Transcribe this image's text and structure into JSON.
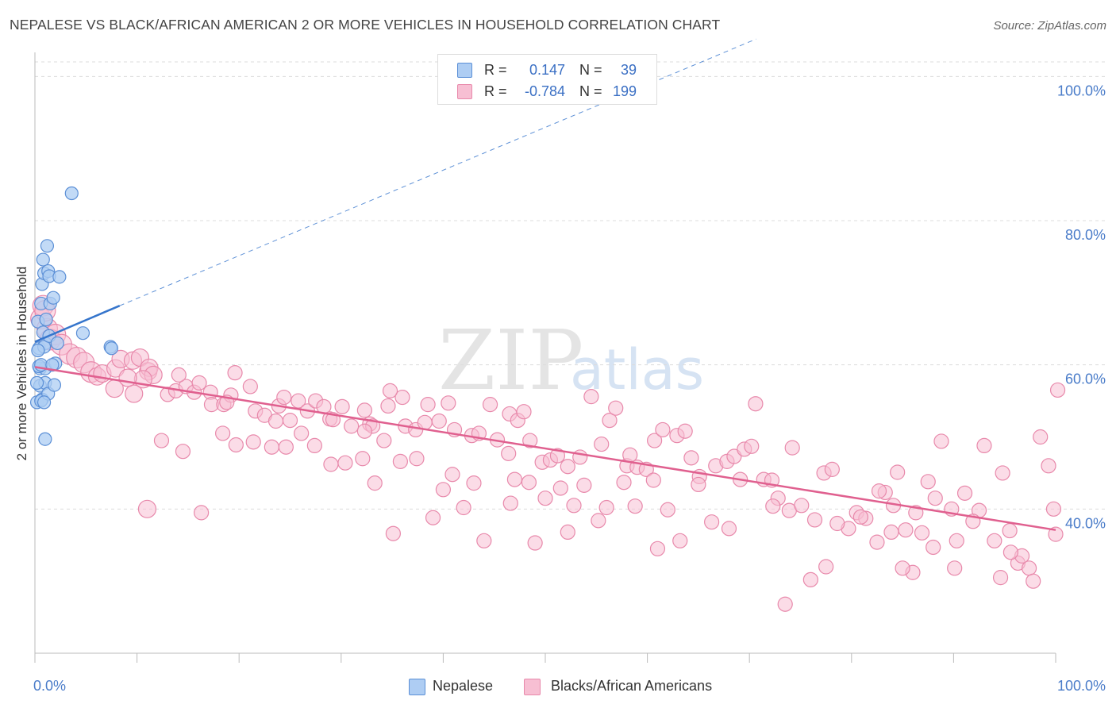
{
  "title": "NEPALESE VS BLACK/AFRICAN AMERICAN 2 OR MORE VEHICLES IN HOUSEHOLD CORRELATION CHART",
  "source": "Source: ZipAtlas.com",
  "watermark": {
    "zip": "ZIP",
    "atlas": "atlas"
  },
  "colors": {
    "nepalese_fill": "#aecdf3",
    "nepalese_stroke": "#5b8fd6",
    "nepalese_line": "#3575cc",
    "black_fill": "#f7bfd3",
    "black_stroke": "#e889ab",
    "black_line": "#e0608f",
    "grid": "#dcdcdc",
    "tick_text": "#4a7cc9"
  },
  "legend": {
    "rows": [
      {
        "r_label": "R =",
        "r_value": "0.147",
        "n_label": "N =",
        "n_value": "39"
      },
      {
        "r_label": "R =",
        "r_value": "-0.784",
        "n_label": "N =",
        "n_value": "199"
      }
    ]
  },
  "bottom_legend": {
    "series1": "Nepalese",
    "series2": "Blacks/African Americans"
  },
  "chart_data": {
    "type": "scatter",
    "title": "NEPALESE VS BLACK/AFRICAN AMERICAN 2 OR MORE VEHICLES IN HOUSEHOLD CORRELATION CHART",
    "xlabel": "",
    "ylabel": "2 or more Vehicles in Household",
    "x_tick_labels": [
      "0.0%",
      "100.0%"
    ],
    "y_tick_labels": [
      "40.0%",
      "60.0%",
      "80.0%",
      "100.0%"
    ],
    "y_ticks": [
      40,
      60,
      80,
      100
    ],
    "xlim": [
      0,
      100
    ],
    "ylim": [
      20,
      104
    ],
    "grid": true,
    "legend_position": "top-center",
    "series": [
      {
        "name": "Nepalese",
        "R": 0.147,
        "N": 39,
        "trend": {
          "x0": 0,
          "y0": 63.2,
          "x1": 8.3,
          "y1": 68.2,
          "dashed_to_x": 100,
          "dashed_to_y": 122.6
        },
        "points": [
          [
            0.2,
            54.8
          ],
          [
            0.5,
            59.5
          ],
          [
            0.4,
            62.3
          ],
          [
            0.3,
            66.0
          ],
          [
            0.6,
            68.5
          ],
          [
            0.8,
            74.6
          ],
          [
            0.7,
            71.2
          ],
          [
            0.9,
            72.7
          ],
          [
            1.2,
            76.5
          ],
          [
            1.3,
            73.0
          ],
          [
            1.4,
            72.3
          ],
          [
            1.1,
            66.3
          ],
          [
            1.0,
            63.0
          ],
          [
            1.5,
            68.5
          ],
          [
            1.8,
            69.3
          ],
          [
            2.4,
            72.2
          ],
          [
            3.6,
            83.8
          ],
          [
            4.7,
            64.4
          ],
          [
            7.4,
            62.5
          ],
          [
            7.5,
            62.3
          ],
          [
            0.9,
            62.5
          ],
          [
            1.0,
            59.5
          ],
          [
            0.5,
            57.1
          ],
          [
            0.7,
            55.2
          ],
          [
            0.6,
            55.0
          ],
          [
            1.0,
            57.5
          ],
          [
            1.3,
            56.0
          ],
          [
            1.9,
            57.2
          ],
          [
            2.0,
            60.2
          ],
          [
            1.0,
            49.7
          ],
          [
            0.4,
            59.8
          ],
          [
            0.3,
            62.0
          ],
          [
            0.8,
            64.5
          ],
          [
            1.4,
            64.0
          ],
          [
            0.6,
            60.0
          ],
          [
            1.7,
            60.0
          ],
          [
            0.2,
            57.5
          ],
          [
            2.2,
            63.0
          ],
          [
            0.9,
            54.8
          ]
        ]
      },
      {
        "name": "Blacks/African Americans",
        "R": -0.784,
        "N": 199,
        "trend": {
          "x0": 0,
          "y0": 59.7,
          "x1": 100,
          "y1": 37.1
        },
        "points": [
          [
            0.6,
            66.4
          ],
          [
            0.8,
            68.2
          ],
          [
            1.2,
            65.0
          ],
          [
            1.5,
            63.5
          ],
          [
            2.0,
            64.2
          ],
          [
            1.0,
            67.5
          ],
          [
            2.6,
            62.8
          ],
          [
            3.4,
            61.5
          ],
          [
            4.1,
            61.0
          ],
          [
            4.8,
            60.3
          ],
          [
            5.5,
            59.0
          ],
          [
            6.1,
            58.4
          ],
          [
            6.6,
            58.8
          ],
          [
            7.9,
            59.5
          ],
          [
            8.4,
            60.8
          ],
          [
            9.6,
            60.6
          ],
          [
            10.3,
            61.0
          ],
          [
            7.8,
            56.7
          ],
          [
            11.1,
            59.1
          ],
          [
            11.2,
            59.6
          ],
          [
            11.6,
            58.6
          ],
          [
            9.7,
            56.0
          ],
          [
            10.6,
            58.0
          ],
          [
            13.0,
            55.9
          ],
          [
            13.8,
            56.4
          ],
          [
            14.8,
            57.0
          ],
          [
            15.6,
            56.2
          ],
          [
            14.1,
            58.6
          ],
          [
            16.1,
            57.5
          ],
          [
            17.2,
            56.2
          ],
          [
            17.3,
            54.5
          ],
          [
            18.5,
            54.5
          ],
          [
            19.2,
            55.8
          ],
          [
            19.6,
            58.9
          ],
          [
            18.8,
            54.8
          ],
          [
            21.1,
            57.0
          ],
          [
            21.6,
            53.6
          ],
          [
            22.5,
            53.0
          ],
          [
            23.6,
            52.2
          ],
          [
            23.9,
            54.3
          ],
          [
            24.4,
            55.5
          ],
          [
            25.0,
            52.3
          ],
          [
            25.8,
            55.0
          ],
          [
            26.7,
            53.6
          ],
          [
            27.5,
            55.0
          ],
          [
            28.3,
            54.2
          ],
          [
            28.9,
            52.5
          ],
          [
            29.2,
            52.4
          ],
          [
            30.1,
            54.2
          ],
          [
            31.0,
            51.5
          ],
          [
            32.3,
            53.7
          ],
          [
            32.8,
            51.8
          ],
          [
            33.1,
            51.5
          ],
          [
            34.2,
            49.5
          ],
          [
            34.6,
            54.3
          ],
          [
            36.0,
            55.5
          ],
          [
            36.3,
            51.5
          ],
          [
            37.3,
            51.0
          ],
          [
            38.2,
            52.0
          ],
          [
            38.5,
            54.5
          ],
          [
            39.6,
            52.2
          ],
          [
            40.5,
            54.7
          ],
          [
            41.1,
            51.0
          ],
          [
            42.8,
            50.2
          ],
          [
            43.5,
            50.5
          ],
          [
            44.6,
            54.5
          ],
          [
            45.3,
            49.6
          ],
          [
            46.4,
            47.7
          ],
          [
            46.5,
            53.2
          ],
          [
            47.3,
            52.3
          ],
          [
            47.9,
            53.5
          ],
          [
            48.5,
            49.5
          ],
          [
            49.7,
            46.5
          ],
          [
            50.5,
            46.8
          ],
          [
            51.2,
            47.4
          ],
          [
            52.2,
            45.9
          ],
          [
            53.4,
            47.2
          ],
          [
            54.5,
            55.6
          ],
          [
            55.5,
            49.0
          ],
          [
            56.3,
            52.3
          ],
          [
            56.9,
            54.0
          ],
          [
            58.0,
            46.0
          ],
          [
            58.3,
            47.5
          ],
          [
            59.0,
            45.8
          ],
          [
            59.9,
            45.5
          ],
          [
            60.6,
            44.0
          ],
          [
            60.7,
            49.5
          ],
          [
            61.5,
            51.0
          ],
          [
            62.9,
            50.2
          ],
          [
            63.7,
            50.8
          ],
          [
            64.3,
            47.1
          ],
          [
            65.1,
            44.5
          ],
          [
            66.7,
            46.0
          ],
          [
            67.8,
            46.6
          ],
          [
            68.5,
            47.3
          ],
          [
            69.5,
            48.3
          ],
          [
            70.6,
            54.6
          ],
          [
            71.4,
            44.1
          ],
          [
            72.2,
            44.0
          ],
          [
            72.8,
            41.5
          ],
          [
            73.9,
            39.8
          ],
          [
            74.2,
            48.5
          ],
          [
            75.1,
            40.5
          ],
          [
            76.4,
            38.5
          ],
          [
            77.3,
            45.0
          ],
          [
            78.1,
            45.5
          ],
          [
            79.7,
            37.3
          ],
          [
            80.5,
            39.5
          ],
          [
            81.4,
            38.7
          ],
          [
            82.5,
            35.4
          ],
          [
            83.3,
            42.3
          ],
          [
            84.1,
            40.5
          ],
          [
            84.5,
            45.1
          ],
          [
            85.3,
            37.1
          ],
          [
            86.3,
            39.5
          ],
          [
            86.9,
            36.7
          ],
          [
            87.5,
            43.8
          ],
          [
            88.2,
            41.5
          ],
          [
            88.8,
            49.4
          ],
          [
            89.8,
            40.0
          ],
          [
            90.3,
            35.6
          ],
          [
            91.1,
            42.2
          ],
          [
            92.5,
            39.8
          ],
          [
            93.0,
            48.8
          ],
          [
            94.0,
            35.6
          ],
          [
            94.8,
            45.0
          ],
          [
            95.5,
            37.0
          ],
          [
            96.3,
            32.5
          ],
          [
            97.4,
            31.8
          ],
          [
            98.5,
            50.0
          ],
          [
            99.3,
            46.0
          ],
          [
            100.0,
            36.5
          ],
          [
            100.2,
            56.5
          ],
          [
            99.8,
            40.0
          ],
          [
            97.8,
            30.0
          ],
          [
            96.7,
            33.5
          ],
          [
            95.6,
            34.0
          ],
          [
            94.6,
            30.5
          ],
          [
            91.9,
            38.3
          ],
          [
            90.1,
            31.8
          ],
          [
            88.0,
            34.7
          ],
          [
            86.0,
            31.2
          ],
          [
            85.0,
            31.8
          ],
          [
            83.9,
            36.8
          ],
          [
            82.7,
            42.5
          ],
          [
            80.9,
            38.9
          ],
          [
            78.6,
            38.0
          ],
          [
            77.5,
            32.0
          ],
          [
            76.0,
            30.2
          ],
          [
            73.5,
            26.8
          ],
          [
            72.3,
            40.4
          ],
          [
            70.2,
            48.7
          ],
          [
            69.1,
            44.1
          ],
          [
            68.0,
            37.3
          ],
          [
            66.3,
            38.2
          ],
          [
            65.0,
            43.4
          ],
          [
            63.2,
            35.6
          ],
          [
            62.0,
            39.9
          ],
          [
            61.0,
            34.5
          ],
          [
            58.8,
            40.4
          ],
          [
            57.7,
            43.7
          ],
          [
            56.0,
            40.2
          ],
          [
            55.2,
            38.4
          ],
          [
            53.8,
            43.3
          ],
          [
            52.8,
            40.5
          ],
          [
            51.5,
            42.9
          ],
          [
            50.0,
            41.5
          ],
          [
            49.0,
            35.3
          ],
          [
            48.4,
            43.7
          ],
          [
            47.0,
            44.1
          ],
          [
            46.6,
            40.8
          ],
          [
            44.0,
            35.6
          ],
          [
            43.0,
            43.6
          ],
          [
            42.0,
            40.2
          ],
          [
            40.9,
            44.8
          ],
          [
            40.0,
            42.7
          ],
          [
            39.0,
            38.8
          ],
          [
            37.4,
            47.0
          ],
          [
            35.8,
            46.6
          ],
          [
            35.1,
            36.6
          ],
          [
            33.3,
            43.6
          ],
          [
            32.1,
            47.0
          ],
          [
            30.4,
            46.4
          ],
          [
            29.0,
            46.2
          ],
          [
            27.4,
            48.8
          ],
          [
            26.1,
            50.5
          ],
          [
            24.6,
            48.6
          ],
          [
            23.2,
            48.6
          ],
          [
            21.4,
            49.3
          ],
          [
            19.7,
            48.9
          ],
          [
            18.4,
            50.5
          ],
          [
            16.3,
            39.5
          ],
          [
            14.5,
            48.0
          ],
          [
            12.4,
            49.5
          ],
          [
            11.0,
            40.0
          ],
          [
            9.1,
            58.2
          ],
          [
            32.3,
            50.8
          ],
          [
            52.2,
            36.8
          ],
          [
            34.8,
            56.4
          ]
        ]
      }
    ]
  }
}
